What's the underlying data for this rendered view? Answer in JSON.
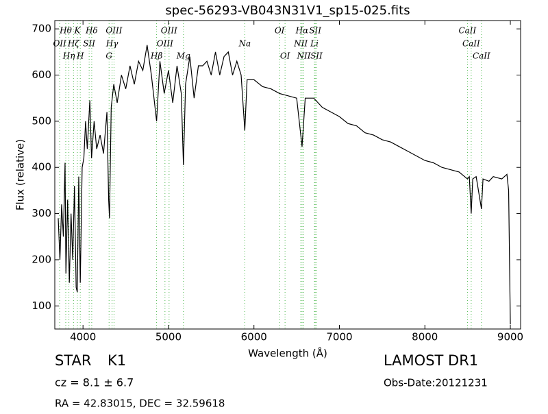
{
  "chart_data": {
    "type": "line",
    "title": "spec-56293-VB043N31V1_sp15-025.fits",
    "x_label": "Wavelength (Å)",
    "y_label": "Flux (relative)",
    "xlim": [
      3670,
      9120
    ],
    "ylim": [
      50,
      718
    ],
    "xticks": [
      4000,
      5000,
      6000,
      7000,
      8000,
      9000
    ],
    "yticks": [
      100,
      200,
      300,
      400,
      500,
      600,
      700
    ],
    "series": [
      {
        "color": "#000000",
        "x": [
          3710,
          3730,
          3750,
          3770,
          3790,
          3800,
          3820,
          3840,
          3860,
          3880,
          3900,
          3920,
          3933,
          3950,
          3968,
          3990,
          4010,
          4030,
          4050,
          4080,
          4100,
          4130,
          4160,
          4200,
          4240,
          4280,
          4300,
          4310,
          4330,
          4360,
          4400,
          4450,
          4500,
          4550,
          4600,
          4650,
          4700,
          4750,
          4800,
          4861,
          4900,
          4950,
          5000,
          5050,
          5100,
          5150,
          5175,
          5200,
          5250,
          5300,
          5350,
          5400,
          5450,
          5500,
          5550,
          5600,
          5650,
          5700,
          5750,
          5800,
          5850,
          5893,
          5920,
          6000,
          6100,
          6200,
          6300,
          6400,
          6500,
          6563,
          6600,
          6700,
          6800,
          6900,
          7000,
          7100,
          7200,
          7300,
          7400,
          7500,
          7600,
          7700,
          7800,
          7900,
          8000,
          8100,
          8200,
          8300,
          8400,
          8498,
          8520,
          8542,
          8560,
          8600,
          8662,
          8680,
          8750,
          8800,
          8900,
          8960,
          8980,
          9000
        ],
        "values": [
          290,
          200,
          320,
          250,
          410,
          170,
          330,
          150,
          300,
          200,
          360,
          140,
          130,
          380,
          150,
          400,
          420,
          500,
          440,
          545,
          420,
          500,
          440,
          470,
          430,
          520,
          330,
          290,
          530,
          580,
          540,
          600,
          570,
          620,
          580,
          630,
          610,
          665,
          600,
          500,
          630,
          560,
          610,
          540,
          620,
          560,
          405,
          580,
          640,
          550,
          620,
          620,
          630,
          600,
          650,
          600,
          640,
          650,
          600,
          630,
          600,
          480,
          590,
          590,
          575,
          570,
          560,
          555,
          550,
          445,
          550,
          550,
          530,
          520,
          510,
          495,
          490,
          475,
          470,
          460,
          455,
          445,
          435,
          425,
          415,
          410,
          400,
          395,
          390,
          375,
          380,
          300,
          375,
          380,
          310,
          375,
          370,
          380,
          375,
          385,
          350,
          60
        ]
      }
    ],
    "annotation_color": "#4cb84c",
    "annotations": [
      {
        "x": 3798,
        "label": "Hθ"
      },
      {
        "x": 3727,
        "label": "OII"
      },
      {
        "x": 3835,
        "label": "Hη"
      },
      {
        "x": 3934,
        "label": "K"
      },
      {
        "x": 3889,
        "label": "Hζ"
      },
      {
        "x": 3968,
        "label": "H"
      },
      {
        "x": 4102,
        "label": "Hδ"
      },
      {
        "x": 4072,
        "label": "SII"
      },
      {
        "x": 4305,
        "label": "G"
      },
      {
        "x": 4363,
        "label": "OIII"
      },
      {
        "x": 4340,
        "label": "Hγ"
      },
      {
        "x": 4861,
        "label": "Hβ"
      },
      {
        "x": 5007,
        "label": "OIII"
      },
      {
        "x": 4959,
        "label": "OIII"
      },
      {
        "x": 5175,
        "label": "Mg"
      },
      {
        "x": 6300,
        "label": "OI"
      },
      {
        "x": 5893,
        "label": "Na"
      },
      {
        "x": 6364,
        "label": "OI"
      },
      {
        "x": 6563,
        "label": "Hα"
      },
      {
        "x": 6548,
        "label": "NII"
      },
      {
        "x": 6583,
        "label": "NII"
      },
      {
        "x": 6717,
        "label": "SII"
      },
      {
        "x": 6708,
        "label": "Li"
      },
      {
        "x": 6731,
        "label": "SII"
      },
      {
        "x": 8498,
        "label": "CaII"
      },
      {
        "x": 8542,
        "label": "CaII"
      },
      {
        "x": 8662,
        "label": "CaII"
      }
    ]
  },
  "footer": {
    "object_class": "STAR",
    "subclass": "K1",
    "redshift": "cz = 8.1 ± 6.7",
    "coords": "RA = 42.83015, DEC = 32.59618",
    "survey": "LAMOST DR1",
    "obs_date": "Obs-Date:20121231"
  }
}
